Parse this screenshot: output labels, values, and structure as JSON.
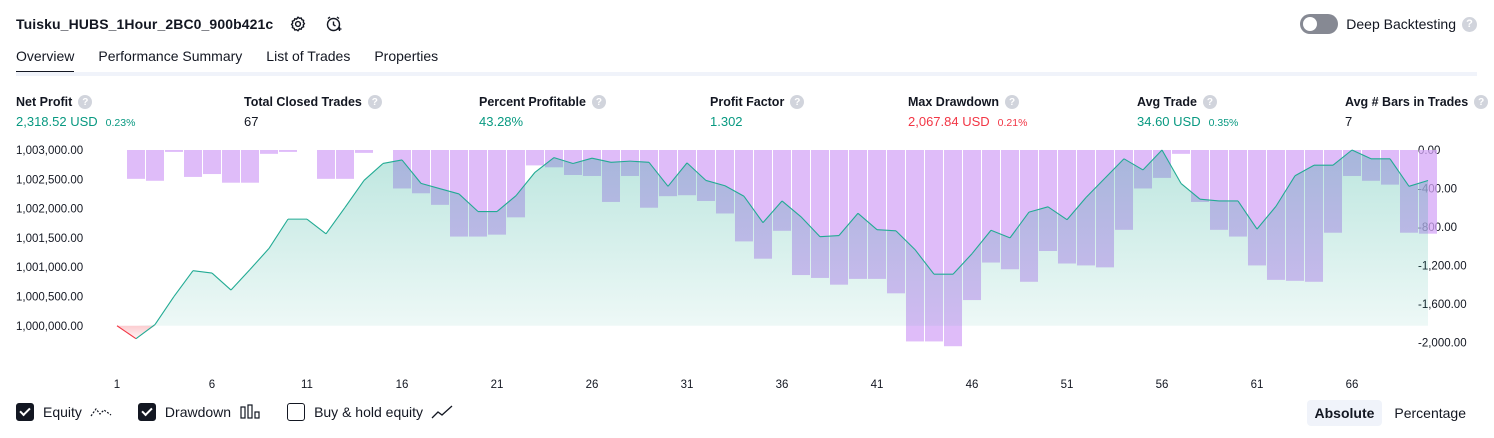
{
  "header": {
    "title": "Tuisku_HUBS_1Hour_2BC0_900b421c",
    "deep_backtesting_label": "Deep Backtesting",
    "help_glyph": "?"
  },
  "tabs": [
    {
      "label": "Overview",
      "active": true
    },
    {
      "label": "Performance Summary",
      "active": false
    },
    {
      "label": "List of Trades",
      "active": false
    },
    {
      "label": "Properties",
      "active": false
    }
  ],
  "metrics": {
    "net_profit": {
      "label": "Net Profit",
      "value": "2,318.52 USD",
      "pct": "0.23%"
    },
    "total_closed_trades": {
      "label": "Total Closed Trades",
      "value": "67"
    },
    "percent_profitable": {
      "label": "Percent Profitable",
      "value": "43.28%"
    },
    "profit_factor": {
      "label": "Profit Factor",
      "value": "1.302"
    },
    "max_drawdown": {
      "label": "Max Drawdown",
      "value": "2,067.84 USD",
      "pct": "0.21%"
    },
    "avg_trade": {
      "label": "Avg Trade",
      "value": "34.60 USD",
      "pct": "0.35%"
    },
    "avg_bars": {
      "label": "Avg # Bars in Trades",
      "value": "7"
    }
  },
  "colors": {
    "profit": "#089981",
    "loss": "#f23645",
    "equity_line": "#22ab94",
    "drawdown_bar": "#d4a6f7"
  },
  "legend": {
    "equity_label": "Equity",
    "drawdown_label": "Drawdown",
    "buy_hold_label": "Buy & hold equity",
    "equity_checked": true,
    "drawdown_checked": true,
    "buy_hold_checked": false
  },
  "mode": {
    "absolute_label": "Absolute",
    "percentage_label": "Percentage",
    "selected": "Absolute"
  },
  "chart_data": {
    "type": "line",
    "x_ticks": [
      "1",
      "6",
      "11",
      "16",
      "21",
      "26",
      "31",
      "36",
      "41",
      "46",
      "51",
      "56",
      "61",
      "66"
    ],
    "left_ticks": [
      "1,003,000.00",
      "1,002,500.00",
      "1,002,000.00",
      "1,001,500.00",
      "1,001,000.00",
      "1,000,500.00",
      "1,000,000.00"
    ],
    "right_ticks": [
      "0.00",
      "-400.00",
      "-800.00",
      "-1,200.00",
      "-1,600.00",
      "-2,000.00"
    ],
    "equity_ylim": [
      999740,
      1003000
    ],
    "drawdown_ylim": [
      -2100,
      0
    ],
    "series": [
      {
        "axis": "left",
        "values": [
          1000000,
          999780,
          1000020,
          1000500,
          1000940,
          1000900,
          1000610,
          1000960,
          1001320,
          1001820,
          1001820,
          1001570,
          1002020,
          1002480,
          1002770,
          1002830,
          1002430,
          1002340,
          1002250,
          1001950,
          1001950,
          1002220,
          1002620,
          1002870,
          1002770,
          1002860,
          1002790,
          1002810,
          1002790,
          1002380,
          1002780,
          1002480,
          1002390,
          1002210,
          1001760,
          1002130,
          1001860,
          1001520,
          1001540,
          1001920,
          1001640,
          1001620,
          1001300,
          1000880,
          1000880,
          1001230,
          1001630,
          1001500,
          1001940,
          1002030,
          1001810,
          1002190,
          1002520,
          1002850,
          1002660,
          1003000,
          1002430,
          1002160,
          1002130,
          1002130,
          1001650,
          1002040,
          1002560,
          1002740,
          1002740,
          1003000,
          1002850,
          1002850,
          1002380,
          1002480
        ]
      },
      {
        "axis": "right",
        "values": [
          0,
          -300,
          -320,
          -20,
          -280,
          -250,
          -340,
          -340,
          -40,
          -20,
          0,
          -300,
          -300,
          -30,
          0,
          -400,
          -450,
          -570,
          -900,
          -900,
          -880,
          -700,
          -160,
          -180,
          -260,
          -270,
          -540,
          -270,
          -600,
          -480,
          -470,
          -530,
          -660,
          -950,
          -1130,
          -840,
          -1300,
          -1330,
          -1400,
          -1340,
          -1340,
          -1490,
          -1990,
          -1990,
          -2040,
          -1560,
          -1170,
          -1240,
          -1370,
          -1050,
          -1180,
          -1200,
          -1220,
          -830,
          -400,
          -290,
          -40,
          -540,
          -830,
          -900,
          -1200,
          -1350,
          -1360,
          -1370,
          -860,
          -270,
          -320,
          -360,
          -860,
          -870
        ]
      }
    ]
  }
}
